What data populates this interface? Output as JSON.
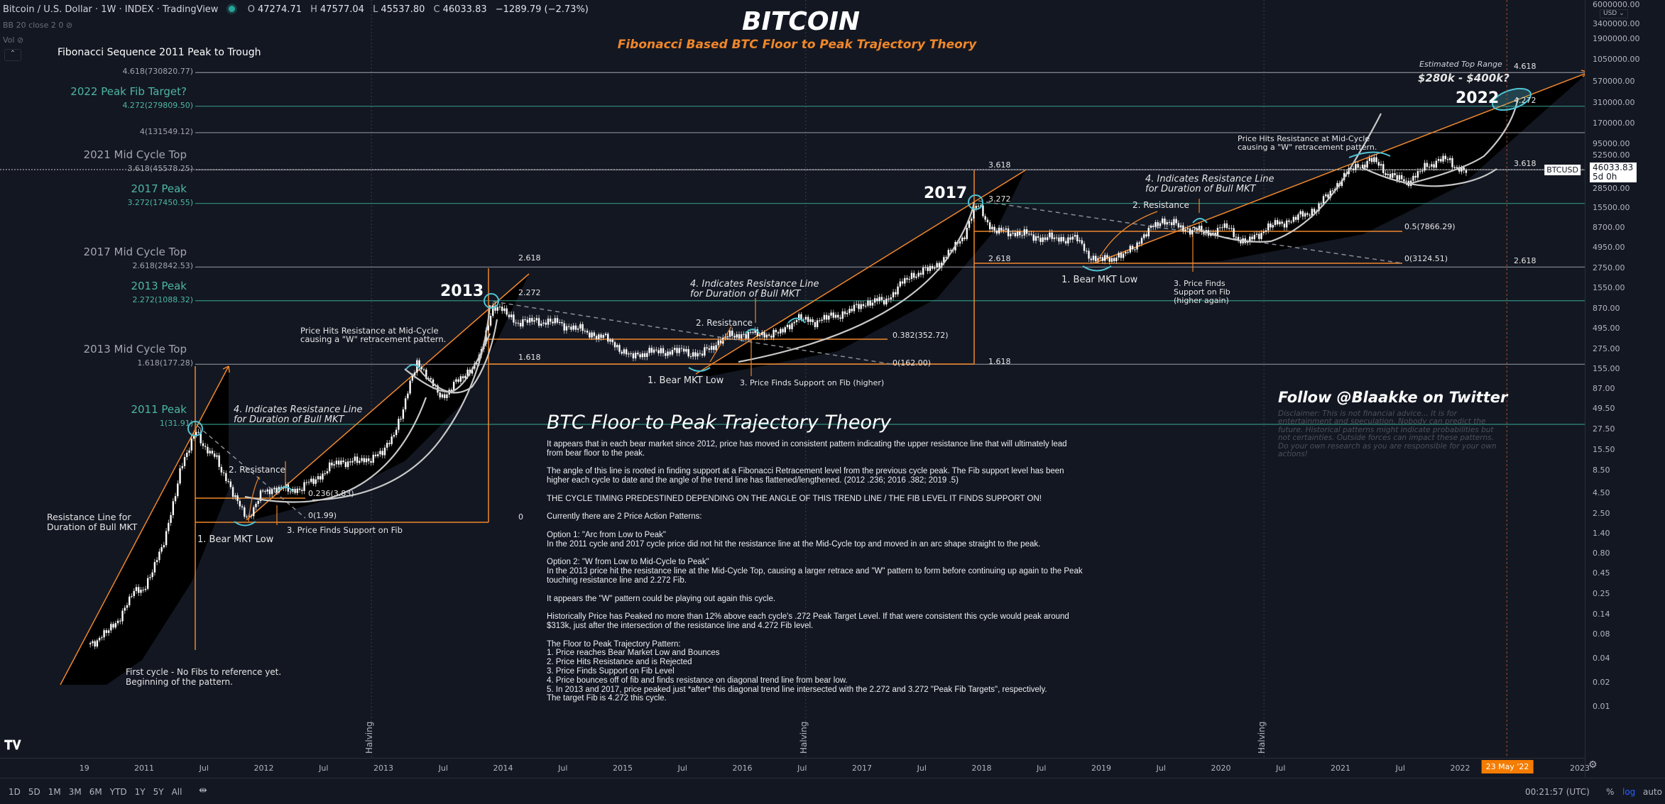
{
  "header": {
    "symbol": "Bitcoin / U.S. Dollar · 1W · INDEX · TradingView",
    "ohlc": [
      {
        "k": "O",
        "v": "47274.71"
      },
      {
        "k": "H",
        "v": "47577.04"
      },
      {
        "k": "L",
        "v": "45537.80"
      },
      {
        "k": "C",
        "v": "46033.83"
      }
    ],
    "change": "−1289.79 (−2.73%)",
    "indicator_bb": "BB 20 close 2 0",
    "indicator_vol": "Vol",
    "fib_title": "Fibonacci Sequence 2011 Peak to Trough"
  },
  "title": {
    "main": "BITCOIN",
    "sub": "Fibonacci Based BTC Floor to Peak Trajectory Theory"
  },
  "fib_levels": [
    {
      "name": "",
      "label": "4.618(730820.77)",
      "price": 730820.77,
      "color": "gray",
      "right": "4.618"
    },
    {
      "name": "2022 Peak Fib Target?",
      "label": "4.272(279809.50)",
      "price": 279809.5,
      "color": "teal",
      "right": "4.272"
    },
    {
      "name": "",
      "label": "4(131549.12)",
      "price": 131549.12,
      "color": "gray",
      "right": ""
    },
    {
      "name": "2021 Mid Cycle Top",
      "label": "3.618(45578.25)",
      "price": 45578.25,
      "color": "gray",
      "right": "3.618"
    },
    {
      "name": "2017 Peak",
      "label": "3.272(17450.55)",
      "price": 17450.55,
      "color": "teal",
      "right": ""
    },
    {
      "name": "2017 Mid Cycle Top",
      "label": "2.618(2842.53)",
      "price": 2842.53,
      "color": "gray",
      "right": "2.618"
    },
    {
      "name": "2013 Peak",
      "label": "2.272(1088.32)",
      "price": 1088.32,
      "color": "teal",
      "right": ""
    },
    {
      "name": "2013 Mid Cycle Top",
      "label": "1.618(177.28)",
      "price": 177.28,
      "color": "gray",
      "right": ""
    },
    {
      "name": "2011 Peak",
      "label": "1(31.91)",
      "price": 31.91,
      "color": "teal",
      "right": ""
    }
  ],
  "annotations": {
    "resistance_line": "Resistance Line for\nDuration of Bull MKT",
    "first_cycle": "First cycle - No Fibs to reference yet.\nBeginning of the pattern.",
    "c1_indicates": "4. Indicates Resistance Line\nfor Duration of Bull MKT",
    "c1_resistance": "2. Resistance",
    "c1_fib236": "0.236(3.83)",
    "c1_fib0": "0(1.99)",
    "c1_bear_low": "1. Bear MKT Low",
    "c1_support": "3. Price Finds Support on Fib",
    "c2_mid": "Price Hits Resistance at Mid-Cycle\ncausing a \"W\" retracement pattern.",
    "y2013": "2013",
    "c2_2618": "2.618",
    "c2_2272": "2.272",
    "c2_1618": "1.618",
    "c2_0": "0",
    "c2_indicates": "4. Indicates Resistance Line\nfor Duration of Bull MKT",
    "c2_resistance": "2. Resistance",
    "c2_fib382": "0.382(352.72)",
    "c2_fib0": "0(162.00)",
    "c2_bear_low": "1. Bear MKT Low",
    "c2_support": "3. Price Finds Support on Fib (higher)",
    "y2017": "2017",
    "c3_3618": "3.618",
    "c3_3272": "3.272",
    "c3_2618": "2.618",
    "c3_1618": "1.618",
    "c3_indicates": "4. Indicates Resistance Line\nfor Duration of Bull MKT",
    "c3_resistance": "2. Resistance",
    "c3_fib5": "0.5(7866.29)",
    "c3_fib0": "0(3124.51)",
    "c3_bear_low": "1. Bear MKT Low",
    "c3_support": "3. Price Finds\nSupport on Fib\n(higher again)",
    "c4_mid": "Price Hits Resistance at Mid-Cycle\ncausing a \"W\" retracement pattern.",
    "est_top": "Estimated Top Range",
    "est_range": "$280k - $400k?",
    "y2022": "2022",
    "halving": "Halving"
  },
  "theory": {
    "title": "BTC Floor to Peak Trajectory Theory",
    "body": "It appears that in each bear market since 2012, price has moved in consistent pattern indicating the upper resistance line that will ultimately lead\nfrom bear floor to the peak.\n\nThe angle of this line is rooted in finding support at a Fibonacci Retracement level from the previous cycle peak. The Fib support level has been\nhigher each cycle to date and the angle of the trend line has flattened/lengthened. (2012 .236; 2016 .382; 2019 .5)\n\nTHE CYCLE TIMING PREDESTINED DEPENDING ON THE ANGLE OF THIS TREND LINE / THE FIB LEVEL IT FINDS SUPPORT ON!\n\nCurrently there are 2 Price Action Patterns:\n\nOption 1: \"Arc from Low to Peak\"\nIn the 2011 cycle and 2017 cycle price did not hit the resistance line at the Mid-Cycle top and moved in an arc shape straight to the peak.\n\nOption 2: \"W from Low to Mid-Cycle to Peak\"\nIn the 2013 price hit the resistance line at the Mid-Cycle Top, causing a larger retrace and \"W\" pattern to form before continuing up again to the Peak\ntouching resistance line and 2.272 Fib.\n\nIt appears the \"W\" pattern could be playing out again this cycle.\n\nHistorically Price has Peaked no more than 12% above each cycle's .272 Peak Target Level. If that were consistent this cycle would peak around\n$313k, just after the intersection of the resistance line and 4.272 Fib level.\n\nThe Floor to Peak Trajectory Pattern:\n1. Price reaches Bear Market Low and Bounces\n2. Price Hits Resistance and is Rejected\n3. Price Finds Support on Fib Level\n4. Price bounces off of fib and finds resistance on diagonal trend line from bear low.\n5. In 2013 and 2017, price peaked just *after* this diagonal trend line intersected with the 2.272 and 3.272 \"Peak Fib Targets\", respectively.\nThe target Fib is 4.272 this cycle."
  },
  "follow": {
    "title": "Follow @Blaakke on Twitter",
    "disclaimer": "Disclaimer: This is not financial advice... It is for\nentertainment and speculation. Nobody can predict the\nfuture. Historical patterns might indicate probabilities but\nnot certainties. Outside forces can impact these patterns.\nDo your own research as you are responsible for your own\nactions!"
  },
  "price_axis": {
    "currency": "USD",
    "ticks": [
      "6000000.00",
      "3400000.00",
      "1900000.00",
      "1050000.00",
      "570000.00",
      "310000.00",
      "170000.00",
      "95000.00",
      "52500.00",
      "28500.00",
      "15500.00",
      "8700.00",
      "4950.00",
      "2750.00",
      "1550.00",
      "870.00",
      "495.00",
      "275.00",
      "155.00",
      "87.00",
      "49.50",
      "27.50",
      "15.50",
      "8.50",
      "4.50",
      "2.50",
      "1.40",
      "0.80",
      "0.45",
      "0.25",
      "0.14",
      "0.08",
      "0.04",
      "0.02",
      "0.01"
    ],
    "symbol_tag": "BTCUSD",
    "last_price": "46033.83",
    "countdown": "5d 0h"
  },
  "time_axis": {
    "ticks": [
      [
        "19",
        2010.5
      ],
      [
        "2011",
        2011
      ],
      [
        "Jul",
        2011.5
      ],
      [
        "2012",
        2012
      ],
      [
        "Jul",
        2012.5
      ],
      [
        "2013",
        2013
      ],
      [
        "Jul",
        2013.5
      ],
      [
        "2014",
        2014
      ],
      [
        "Jul",
        2014.5
      ],
      [
        "2015",
        2015
      ],
      [
        "Jul",
        2015.5
      ],
      [
        "2016",
        2016
      ],
      [
        "Jul",
        2016.5
      ],
      [
        "2017",
        2017
      ],
      [
        "Jul",
        2017.5
      ],
      [
        "2018",
        2018
      ],
      [
        "Jul",
        2018.5
      ],
      [
        "2019",
        2019
      ],
      [
        "Jul",
        2019.5
      ],
      [
        "2020",
        2020
      ],
      [
        "Jul",
        2020.5
      ],
      [
        "2021",
        2021
      ],
      [
        "Jul",
        2021.5
      ],
      [
        "2022",
        2022
      ],
      [
        "2023",
        2023
      ]
    ],
    "cursor_label": "23 May '22",
    "cursor_date": 2022.39
  },
  "toolbar": {
    "ranges": [
      "1D",
      "5D",
      "1M",
      "3M",
      "6M",
      "YTD",
      "1Y",
      "5Y",
      "All"
    ],
    "clock": "00:21:57 (UTC)",
    "percent": "%",
    "log": "log",
    "auto": "auto"
  },
  "colors": {
    "background": "#131722",
    "teal": "#4db6a4",
    "orange": "#f0872a",
    "gray": "#9598a1",
    "candle": "#ffffff",
    "log_active": "#2962ff"
  },
  "chart_data": {
    "type": "candlestick",
    "title": "BITCOIN",
    "subtitle": "Fibonacci Based BTC Floor to Peak Trajectory Theory",
    "interval": "1W",
    "y_scale": "log",
    "ylim": [
      0.01,
      6000000
    ],
    "xlim": [
      2010.5,
      2023.5
    ],
    "grid": false,
    "approx_close_path": [
      [
        2010.55,
        0.06
      ],
      [
        2010.75,
        0.1
      ],
      [
        2010.9,
        0.25
      ],
      [
        2011.0,
        0.3
      ],
      [
        2011.15,
        0.9
      ],
      [
        2011.3,
        8
      ],
      [
        2011.44,
        30
      ],
      [
        2011.5,
        15
      ],
      [
        2011.6,
        13
      ],
      [
        2011.75,
        4
      ],
      [
        2011.88,
        2.2
      ],
      [
        2012.0,
        5
      ],
      [
        2012.3,
        5
      ],
      [
        2012.45,
        7
      ],
      [
        2012.62,
        11
      ],
      [
        2012.8,
        11
      ],
      [
        2013.0,
        14
      ],
      [
        2013.15,
        40
      ],
      [
        2013.28,
        200
      ],
      [
        2013.4,
        100
      ],
      [
        2013.5,
        70
      ],
      [
        2013.65,
        120
      ],
      [
        2013.8,
        200
      ],
      [
        2013.92,
        1000
      ],
      [
        2014.0,
        800
      ],
      [
        2014.1,
        600
      ],
      [
        2014.4,
        600
      ],
      [
        2014.6,
        500
      ],
      [
        2014.9,
        350
      ],
      [
        2015.05,
        220
      ],
      [
        2015.2,
        250
      ],
      [
        2015.5,
        260
      ],
      [
        2015.65,
        230
      ],
      [
        2015.85,
        380
      ],
      [
        2016.0,
        420
      ],
      [
        2016.3,
        420
      ],
      [
        2016.45,
        650
      ],
      [
        2016.6,
        600
      ],
      [
        2016.9,
        800
      ],
      [
        2017.0,
        1000
      ],
      [
        2017.2,
        1100
      ],
      [
        2017.4,
        2200
      ],
      [
        2017.6,
        2800
      ],
      [
        2017.75,
        4500
      ],
      [
        2017.85,
        7000
      ],
      [
        2017.96,
        17000
      ],
      [
        2018.1,
        8000
      ],
      [
        2018.3,
        7500
      ],
      [
        2018.5,
        6500
      ],
      [
        2018.8,
        6300
      ],
      [
        2018.9,
        4000
      ],
      [
        2018.95,
        3400
      ],
      [
        2019.2,
        4000
      ],
      [
        2019.4,
        8000
      ],
      [
        2019.5,
        11000
      ],
      [
        2019.7,
        8500
      ],
      [
        2019.9,
        7500
      ],
      [
        2020.05,
        9000
      ],
      [
        2020.2,
        5500
      ],
      [
        2020.4,
        9000
      ],
      [
        2020.6,
        11000
      ],
      [
        2020.8,
        15000
      ],
      [
        2020.95,
        28000
      ],
      [
        2021.1,
        48000
      ],
      [
        2021.28,
        60000
      ],
      [
        2021.4,
        40000
      ],
      [
        2021.55,
        32000
      ],
      [
        2021.7,
        47000
      ],
      [
        2021.85,
        65000
      ],
      [
        2021.95,
        50000
      ],
      [
        2022.05,
        46033.83
      ]
    ],
    "halvings": [
      2012.9,
      2016.53,
      2020.36
    ]
  }
}
